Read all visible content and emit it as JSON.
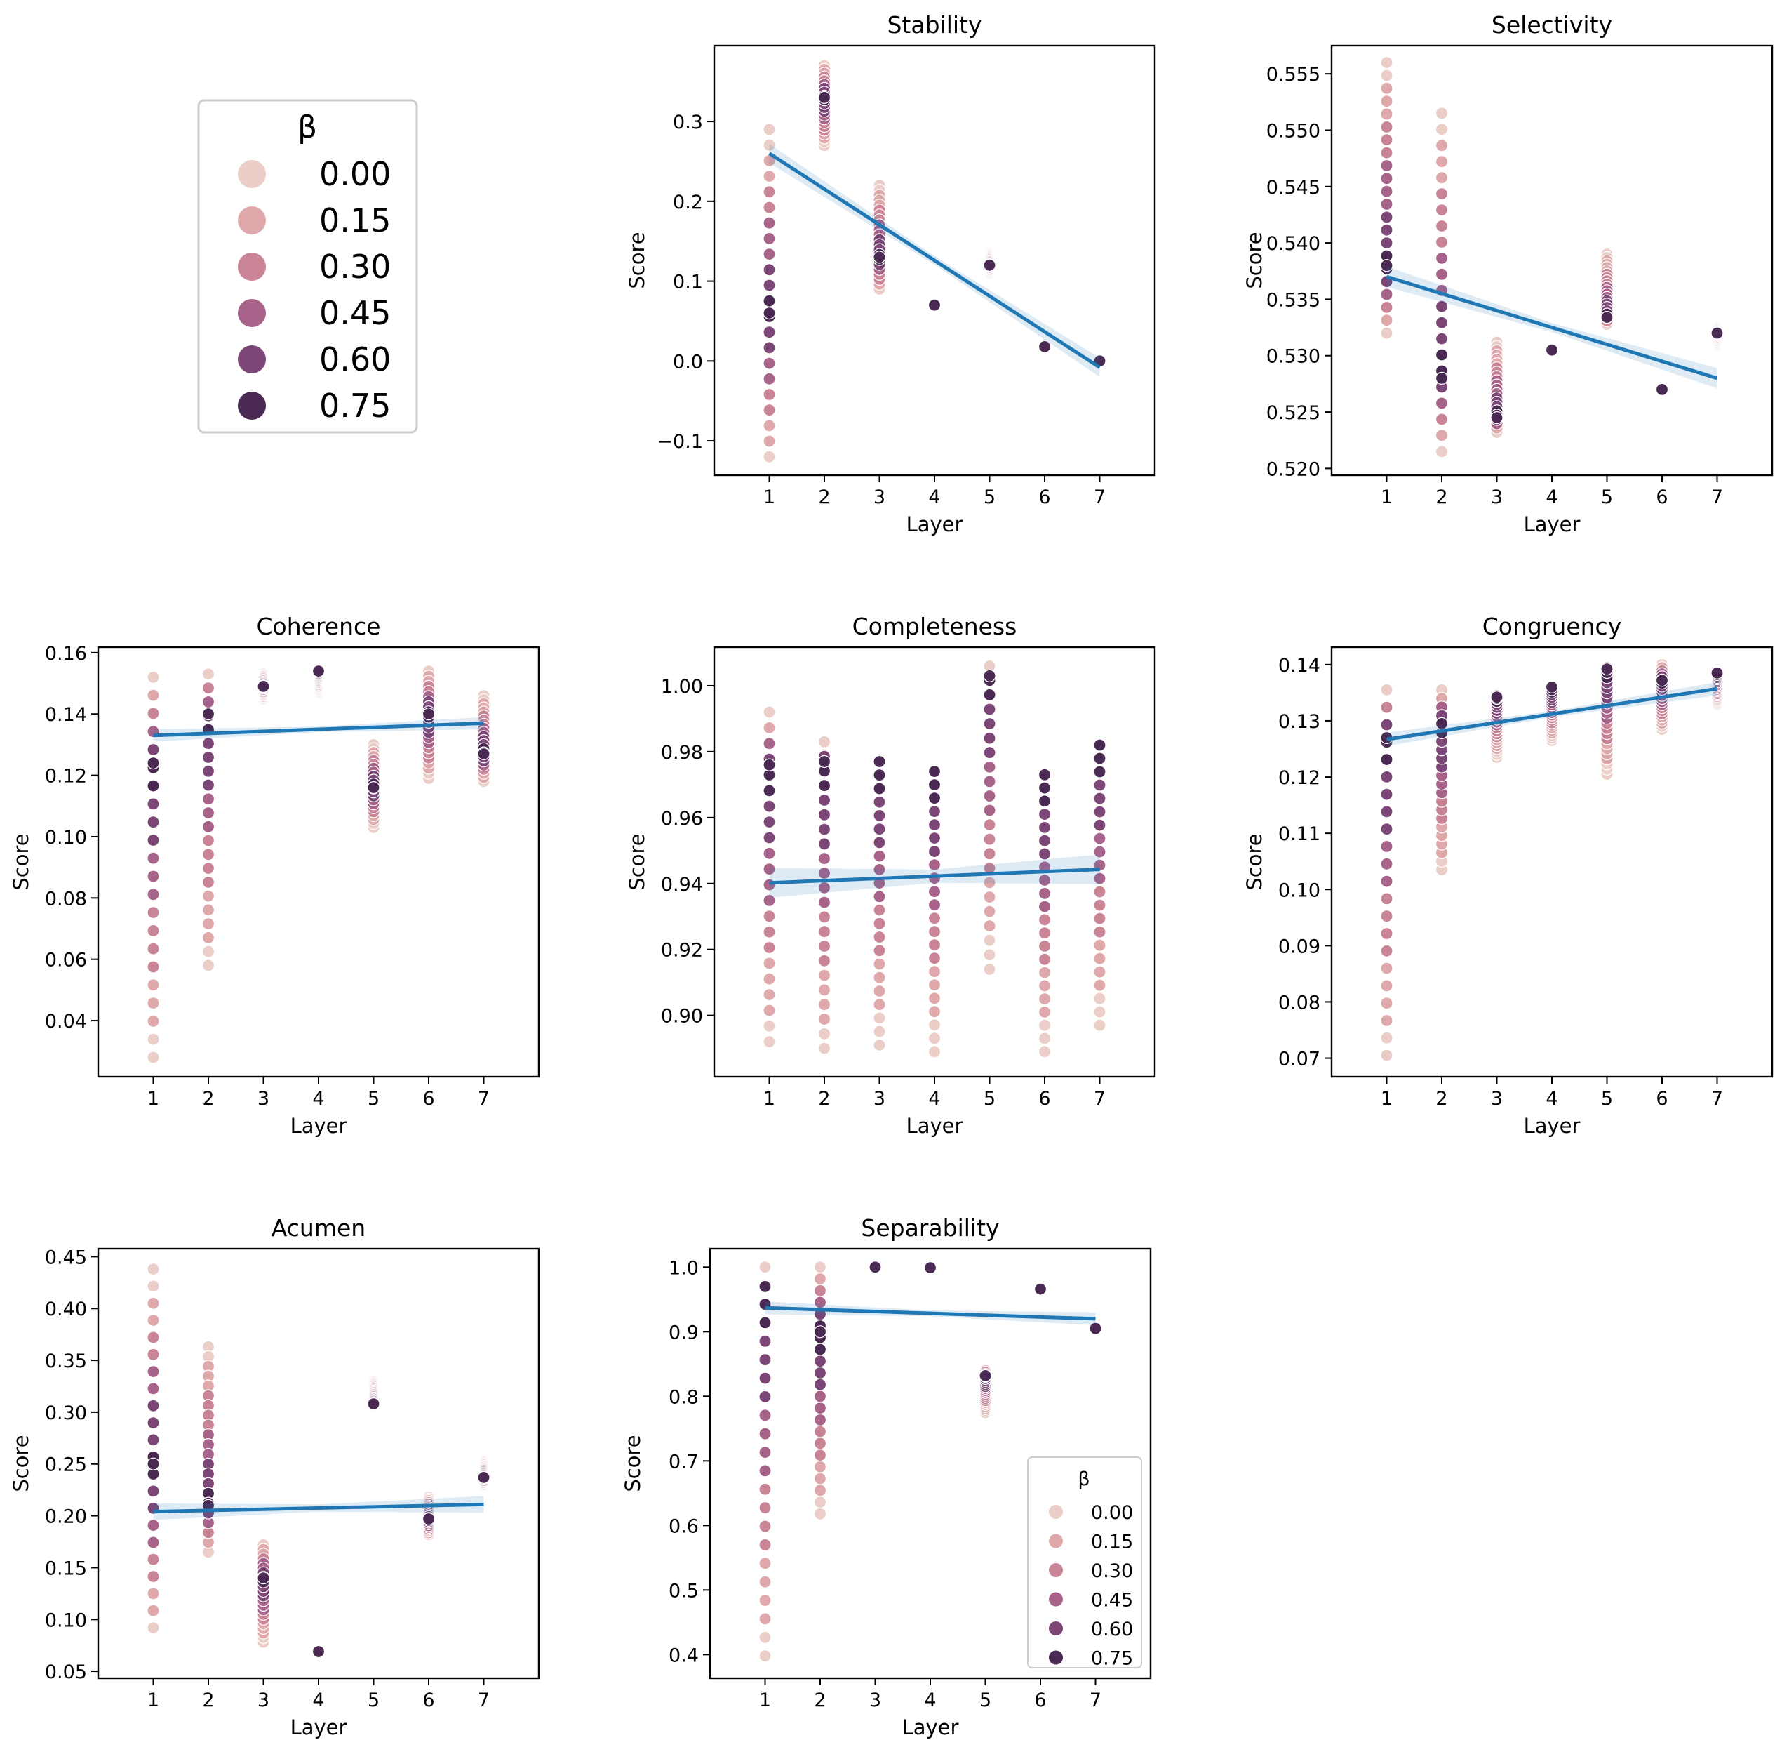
{
  "legend": {
    "title": "β",
    "entries": [
      "0.00",
      "0.15",
      "0.30",
      "0.45",
      "0.60",
      "0.75"
    ],
    "colors": [
      "#ebcec8",
      "#dfa9ab",
      "#c98496",
      "#a8638a",
      "#7c4676",
      "#4a2a52"
    ]
  },
  "chart_data": [
    {
      "type": "scatter",
      "title": "Stability",
      "xlabel": "Layer",
      "ylabel": "Score",
      "xticks": [
        "1",
        "2",
        "3",
        "4",
        "5",
        "6",
        "7"
      ],
      "yticks": [
        "−0.1",
        "0.0",
        "0.1",
        "0.2",
        "0.3"
      ],
      "ytick_values": [
        -0.1,
        0.0,
        0.1,
        0.2,
        0.3
      ],
      "xlim": [
        0,
        8
      ],
      "ylim": [
        -0.143,
        0.395
      ],
      "groups": [
        {
          "x": 1,
          "low": -0.12,
          "high": 0.29,
          "beta_mid": 0.06
        },
        {
          "x": 2,
          "low": 0.27,
          "high": 0.37,
          "beta_mid": 0.33
        },
        {
          "x": 3,
          "low": 0.09,
          "high": 0.22,
          "beta_mid": 0.13
        },
        {
          "x": 4,
          "low": 0.07,
          "high": 0.07,
          "beta_mid": 0.07
        },
        {
          "x": 5,
          "low": 0.11,
          "high": 0.135,
          "beta_mid": 0.12
        },
        {
          "x": 6,
          "low": 0.018,
          "high": 0.018,
          "beta_mid": 0.018
        },
        {
          "x": 7,
          "low": -0.005,
          "high": 0.003,
          "beta_mid": 0.0
        }
      ],
      "regression": {
        "x": [
          1,
          7
        ],
        "y": [
          0.26,
          -0.008
        ],
        "ci": 0.012
      }
    },
    {
      "type": "scatter",
      "title": "Selectivity",
      "xlabel": "Layer",
      "ylabel": "Score",
      "xticks": [
        "1",
        "2",
        "3",
        "4",
        "5",
        "6",
        "7"
      ],
      "yticks": [
        "0.520",
        "0.525",
        "0.530",
        "0.535",
        "0.540",
        "0.545",
        "0.550",
        "0.555"
      ],
      "ytick_values": [
        0.52,
        0.525,
        0.53,
        0.535,
        0.54,
        0.545,
        0.55,
        0.555
      ],
      "xlim": [
        0,
        8
      ],
      "ylim": [
        0.5194,
        0.5575
      ],
      "groups": [
        {
          "x": 1,
          "low": 0.532,
          "high": 0.556,
          "beta_mid": 0.538
        },
        {
          "x": 2,
          "low": 0.5215,
          "high": 0.5515,
          "beta_mid": 0.528
        },
        {
          "x": 3,
          "low": 0.5232,
          "high": 0.5312,
          "beta_mid": 0.5245
        },
        {
          "x": 4,
          "low": 0.5305,
          "high": 0.5305,
          "beta_mid": 0.5305
        },
        {
          "x": 5,
          "low": 0.5328,
          "high": 0.539,
          "beta_mid": 0.5334
        },
        {
          "x": 6,
          "low": 0.5262,
          "high": 0.5272,
          "beta_mid": 0.527
        },
        {
          "x": 7,
          "low": 0.5308,
          "high": 0.5325,
          "beta_mid": 0.532
        }
      ],
      "regression": {
        "x": [
          1,
          7
        ],
        "y": [
          0.537,
          0.528
        ],
        "ci": 0.0009
      }
    },
    {
      "type": "scatter",
      "title": "Coherence",
      "xlabel": "Layer",
      "ylabel": "Score",
      "xticks": [
        "1",
        "2",
        "3",
        "4",
        "5",
        "6",
        "7"
      ],
      "yticks": [
        "0.04",
        "0.06",
        "0.08",
        "0.10",
        "0.12",
        "0.14",
        "0.16"
      ],
      "ytick_values": [
        0.04,
        0.06,
        0.08,
        0.1,
        0.12,
        0.14,
        0.16
      ],
      "xlim": [
        0,
        8
      ],
      "ylim": [
        0.0217,
        0.1618
      ],
      "groups": [
        {
          "x": 1,
          "low": 0.028,
          "high": 0.152,
          "beta_mid": 0.124
        },
        {
          "x": 2,
          "low": 0.058,
          "high": 0.153,
          "beta_mid": 0.14
        },
        {
          "x": 3,
          "low": 0.145,
          "high": 0.153,
          "beta_mid": 0.149
        },
        {
          "x": 4,
          "low": 0.147,
          "high": 0.154,
          "beta_mid": 0.154
        },
        {
          "x": 5,
          "low": 0.103,
          "high": 0.13,
          "beta_mid": 0.116
        },
        {
          "x": 6,
          "low": 0.119,
          "high": 0.154,
          "beta_mid": 0.14
        },
        {
          "x": 7,
          "low": 0.118,
          "high": 0.146,
          "beta_mid": 0.127
        }
      ],
      "regression": {
        "x": [
          1,
          7
        ],
        "y": [
          0.133,
          0.137
        ],
        "ci": 0.002
      }
    },
    {
      "type": "scatter",
      "title": "Completeness",
      "xlabel": "Layer",
      "ylabel": "Score",
      "xticks": [
        "1",
        "2",
        "3",
        "4",
        "5",
        "6",
        "7"
      ],
      "yticks": [
        "0.90",
        "0.92",
        "0.94",
        "0.96",
        "0.98",
        "1.00"
      ],
      "ytick_values": [
        0.9,
        0.92,
        0.94,
        0.96,
        0.98,
        1.0
      ],
      "xlim": [
        0,
        8
      ],
      "ylim": [
        0.8814,
        1.0117
      ],
      "groups": [
        {
          "x": 1,
          "low": 0.892,
          "high": 0.992,
          "beta_mid": 0.976
        },
        {
          "x": 2,
          "low": 0.89,
          "high": 0.983,
          "beta_mid": 0.977
        },
        {
          "x": 3,
          "low": 0.891,
          "high": 0.977,
          "beta_mid": 0.977
        },
        {
          "x": 4,
          "low": 0.889,
          "high": 0.974,
          "beta_mid": 0.974
        },
        {
          "x": 5,
          "low": 0.914,
          "high": 1.006,
          "beta_mid": 1.003
        },
        {
          "x": 6,
          "low": 0.889,
          "high": 0.973,
          "beta_mid": 0.973
        },
        {
          "x": 7,
          "low": 0.897,
          "high": 0.982,
          "beta_mid": 0.982
        }
      ],
      "regression": {
        "x": [
          1,
          7
        ],
        "y": [
          0.9402,
          0.9443
        ],
        "ci": 0.0045
      }
    },
    {
      "type": "scatter",
      "title": "Congruency",
      "xlabel": "Layer",
      "ylabel": "Score",
      "xticks": [
        "1",
        "2",
        "3",
        "4",
        "5",
        "6",
        "7"
      ],
      "yticks": [
        "0.07",
        "0.08",
        "0.09",
        "0.10",
        "0.11",
        "0.12",
        "0.13",
        "0.14"
      ],
      "ytick_values": [
        0.07,
        0.08,
        0.09,
        0.1,
        0.11,
        0.12,
        0.13,
        0.14
      ],
      "xlim": [
        0,
        8
      ],
      "ylim": [
        0.0667,
        0.1431
      ],
      "groups": [
        {
          "x": 1,
          "low": 0.0705,
          "high": 0.1355,
          "beta_mid": 0.127
        },
        {
          "x": 2,
          "low": 0.1035,
          "high": 0.1355,
          "beta_mid": 0.1295
        },
        {
          "x": 3,
          "low": 0.1235,
          "high": 0.1345,
          "beta_mid": 0.1342
        },
        {
          "x": 4,
          "low": 0.1265,
          "high": 0.136,
          "beta_mid": 0.136
        },
        {
          "x": 5,
          "low": 0.1205,
          "high": 0.1395,
          "beta_mid": 0.1392
        },
        {
          "x": 6,
          "low": 0.1285,
          "high": 0.14,
          "beta_mid": 0.1372
        },
        {
          "x": 7,
          "low": 0.133,
          "high": 0.1385,
          "beta_mid": 0.1385
        }
      ],
      "regression": {
        "x": [
          1,
          7
        ],
        "y": [
          0.1267,
          0.1357
        ],
        "ci": 0.0012
      }
    },
    {
      "type": "scatter",
      "title": "Acumen",
      "xlabel": "Layer",
      "ylabel": "Score",
      "xticks": [
        "1",
        "2",
        "3",
        "4",
        "5",
        "6",
        "7"
      ],
      "yticks": [
        "0.05",
        "0.10",
        "0.15",
        "0.20",
        "0.25",
        "0.30",
        "0.35",
        "0.40",
        "0.45"
      ],
      "ytick_values": [
        0.05,
        0.1,
        0.15,
        0.2,
        0.25,
        0.3,
        0.35,
        0.4,
        0.45
      ],
      "xlim": [
        0,
        8
      ],
      "ylim": [
        0.0433,
        0.4577
      ],
      "groups": [
        {
          "x": 1,
          "low": 0.092,
          "high": 0.438,
          "beta_mid": 0.25
        },
        {
          "x": 2,
          "low": 0.165,
          "high": 0.363,
          "beta_mid": 0.21
        },
        {
          "x": 3,
          "low": 0.078,
          "high": 0.172,
          "beta_mid": 0.14
        },
        {
          "x": 4,
          "low": 0.068,
          "high": 0.07,
          "beta_mid": 0.069
        },
        {
          "x": 5,
          "low": 0.307,
          "high": 0.33,
          "beta_mid": 0.308
        },
        {
          "x": 6,
          "low": 0.182,
          "high": 0.218,
          "beta_mid": 0.197
        },
        {
          "x": 7,
          "low": 0.23,
          "high": 0.252,
          "beta_mid": 0.237
        }
      ],
      "regression": {
        "x": [
          1,
          7
        ],
        "y": [
          0.204,
          0.211
        ],
        "ci": 0.008
      }
    },
    {
      "type": "scatter",
      "title": "Separability",
      "xlabel": "Layer",
      "ylabel": "Score",
      "xticks": [
        "1",
        "2",
        "3",
        "4",
        "5",
        "6",
        "7"
      ],
      "yticks": [
        "0.4",
        "0.5",
        "0.6",
        "0.7",
        "0.8",
        "0.9",
        "1.0"
      ],
      "ytick_values": [
        0.4,
        0.5,
        0.6,
        0.7,
        0.8,
        0.9,
        1.0
      ],
      "xlim": [
        0,
        8
      ],
      "ylim": [
        0.3634,
        1.0286
      ],
      "groups": [
        {
          "x": 1,
          "low": 0.398,
          "high": 1.0,
          "beta_mid": 0.97
        },
        {
          "x": 2,
          "low": 0.618,
          "high": 1.0,
          "beta_mid": 0.9
        },
        {
          "x": 3,
          "low": 1.0,
          "high": 1.0,
          "beta_mid": 1.0
        },
        {
          "x": 4,
          "low": 0.999,
          "high": 0.999,
          "beta_mid": 0.999
        },
        {
          "x": 5,
          "low": 0.775,
          "high": 0.84,
          "beta_mid": 0.832
        },
        {
          "x": 6,
          "low": 0.966,
          "high": 0.966,
          "beta_mid": 0.966
        },
        {
          "x": 7,
          "low": 0.893,
          "high": 0.91,
          "beta_mid": 0.905
        }
      ],
      "regression": {
        "x": [
          1,
          7
        ],
        "y": [
          0.937,
          0.92
        ],
        "ci": 0.01
      },
      "legend": "lower-right"
    }
  ]
}
